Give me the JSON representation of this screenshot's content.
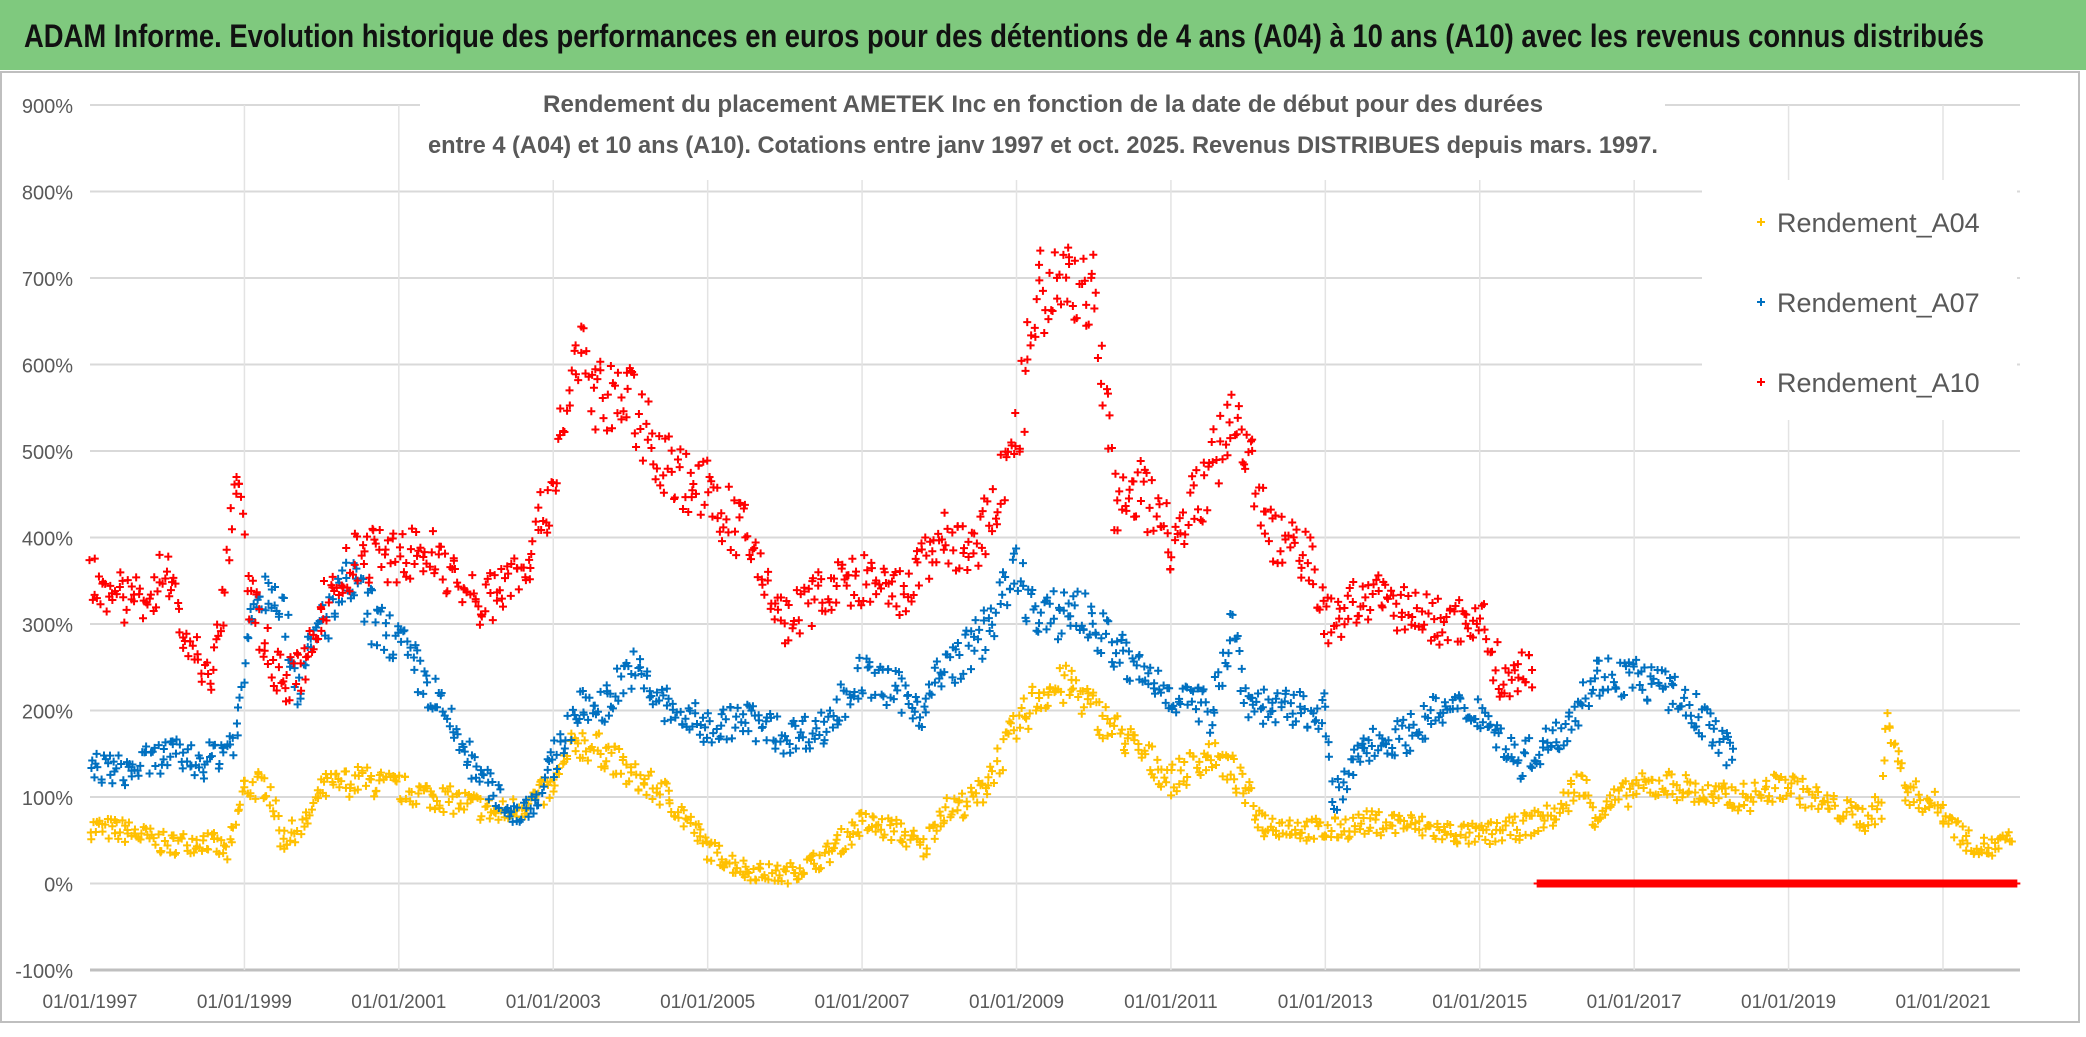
{
  "header": {
    "title": "ADAM Informe. Evolution historique des performances en euros pour des détentions de 4 ans (A04) à 10 ans (A10) avec les revenus connus distribués"
  },
  "colors": {
    "header_bg": "#7FC97E",
    "A04": "#FFC000",
    "A07": "#0070C0",
    "A10": "#FF0000",
    "text": "#595959",
    "grid": "#D9D9D9"
  },
  "chart_data": {
    "type": "scatter",
    "title_lines": [
      "Rendement du placement AMETEK Inc en fonction de la date de début pour des durées",
      "entre 4 (A04) et 10 ans (A10). Cotations entre janv 1997 et oct. 2025. Revenus DISTRIBUES depuis mars. 1997."
    ],
    "xlabel": "",
    "ylabel": "",
    "xlim": [
      1997.0,
      2022.0
    ],
    "ylim": [
      -100,
      900
    ],
    "y_ticks": [
      "-100%",
      "0%",
      "100%",
      "200%",
      "300%",
      "400%",
      "500%",
      "600%",
      "700%",
      "800%",
      "900%"
    ],
    "x_ticks": [
      "01/01/1997",
      "01/01/1999",
      "01/01/2001",
      "01/01/2003",
      "01/01/2005",
      "01/01/2007",
      "01/01/2009",
      "01/01/2011",
      "01/01/2013",
      "01/01/2015",
      "01/01/2017",
      "01/01/2019",
      "01/01/2021"
    ],
    "grid": true,
    "legend_position": "right",
    "marker": "plus",
    "series": [
      {
        "name": "Rendement_A04",
        "color_key": "A04",
        "points": [
          [
            1997.0,
            65
          ],
          [
            1997.5,
            60
          ],
          [
            1998.0,
            45
          ],
          [
            1998.5,
            50
          ],
          [
            1998.8,
            35
          ],
          [
            1999.0,
            110
          ],
          [
            1999.3,
            115
          ],
          [
            1999.5,
            50
          ],
          [
            1999.8,
            70
          ],
          [
            2000.0,
            110
          ],
          [
            2000.5,
            120
          ],
          [
            2001.0,
            110
          ],
          [
            2001.5,
            100
          ],
          [
            2002.0,
            90
          ],
          [
            2002.3,
            80
          ],
          [
            2002.6,
            90
          ],
          [
            2003.0,
            110
          ],
          [
            2003.3,
            165
          ],
          [
            2003.7,
            150
          ],
          [
            2004.0,
            125
          ],
          [
            2004.5,
            100
          ],
          [
            2005.0,
            40
          ],
          [
            2005.5,
            15
          ],
          [
            2006.0,
            10
          ],
          [
            2006.5,
            30
          ],
          [
            2007.0,
            70
          ],
          [
            2007.5,
            60
          ],
          [
            2007.8,
            40
          ],
          [
            2008.0,
            80
          ],
          [
            2008.5,
            100
          ],
          [
            2009.0,
            180
          ],
          [
            2009.3,
            220
          ],
          [
            2009.7,
            230
          ],
          [
            2010.0,
            200
          ],
          [
            2010.5,
            160
          ],
          [
            2011.0,
            120
          ],
          [
            2011.5,
            150
          ],
          [
            2011.8,
            130
          ],
          [
            2012.2,
            70
          ],
          [
            2013.0,
            60
          ],
          [
            2013.5,
            70
          ],
          [
            2014.0,
            70
          ],
          [
            2014.5,
            60
          ],
          [
            2015.0,
            55
          ],
          [
            2015.5,
            65
          ],
          [
            2016.0,
            80
          ],
          [
            2016.3,
            120
          ],
          [
            2016.5,
            80
          ],
          [
            2017.0,
            110
          ],
          [
            2017.5,
            115
          ],
          [
            2018.0,
            100
          ],
          [
            2018.5,
            100
          ],
          [
            2019.0,
            115
          ],
          [
            2019.5,
            90
          ],
          [
            2020.0,
            75
          ],
          [
            2020.2,
            90
          ],
          [
            2020.3,
            200
          ],
          [
            2020.5,
            110
          ],
          [
            2021.0,
            85
          ],
          [
            2021.3,
            50
          ],
          [
            2021.6,
            40
          ],
          [
            2021.9,
            50
          ]
        ]
      },
      {
        "name": "Rendement_A07",
        "color_key": "A07",
        "points": [
          [
            1997.0,
            135
          ],
          [
            1997.5,
            130
          ],
          [
            1998.0,
            150
          ],
          [
            1998.5,
            140
          ],
          [
            1998.9,
            170
          ],
          [
            1999.1,
            330
          ],
          [
            1999.4,
            350
          ],
          [
            1999.7,
            230
          ],
          [
            2000.0,
            300
          ],
          [
            2000.4,
            350
          ],
          [
            2000.7,
            300
          ],
          [
            2001.0,
            280
          ],
          [
            2001.5,
            210
          ],
          [
            2002.0,
            130
          ],
          [
            2002.5,
            80
          ],
          [
            2002.8,
            100
          ],
          [
            2003.0,
            140
          ],
          [
            2003.3,
            200
          ],
          [
            2003.7,
            210
          ],
          [
            2004.0,
            250
          ],
          [
            2004.5,
            200
          ],
          [
            2005.0,
            180
          ],
          [
            2005.5,
            190
          ],
          [
            2006.0,
            170
          ],
          [
            2006.5,
            180
          ],
          [
            2007.0,
            240
          ],
          [
            2007.5,
            220
          ],
          [
            2007.8,
            200
          ],
          [
            2008.0,
            240
          ],
          [
            2008.5,
            280
          ],
          [
            2009.0,
            360
          ],
          [
            2009.3,
            300
          ],
          [
            2009.7,
            320
          ],
          [
            2010.0,
            300
          ],
          [
            2010.5,
            250
          ],
          [
            2011.0,
            220
          ],
          [
            2011.5,
            200
          ],
          [
            2011.8,
            300
          ],
          [
            2012.0,
            210
          ],
          [
            2012.5,
            200
          ],
          [
            2013.0,
            200
          ],
          [
            2013.1,
            90
          ],
          [
            2013.5,
            160
          ],
          [
            2014.0,
            170
          ],
          [
            2014.5,
            200
          ],
          [
            2015.0,
            200
          ],
          [
            2015.5,
            140
          ],
          [
            2016.0,
            170
          ],
          [
            2016.5,
            240
          ],
          [
            2017.0,
            240
          ],
          [
            2017.5,
            220
          ],
          [
            2018.0,
            180
          ],
          [
            2018.3,
            140
          ]
        ]
      },
      {
        "name": "Rendement_A10",
        "color_key": "A10",
        "points": [
          [
            1997.0,
            360
          ],
          [
            1997.5,
            320
          ],
          [
            1998.0,
            360
          ],
          [
            1998.3,
            270
          ],
          [
            1998.6,
            240
          ],
          [
            1998.9,
            470
          ],
          [
            1999.1,
            320
          ],
          [
            1999.5,
            230
          ],
          [
            1999.8,
            250
          ],
          [
            2000.0,
            320
          ],
          [
            2000.5,
            380
          ],
          [
            2001.0,
            380
          ],
          [
            2001.5,
            380
          ],
          [
            2002.0,
            320
          ],
          [
            2002.3,
            340
          ],
          [
            2002.7,
            380
          ],
          [
            2003.0,
            460
          ],
          [
            2003.3,
            620
          ],
          [
            2003.6,
            560
          ],
          [
            2004.0,
            560
          ],
          [
            2004.5,
            480
          ],
          [
            2005.0,
            450
          ],
          [
            2005.5,
            400
          ],
          [
            2006.0,
            300
          ],
          [
            2006.5,
            340
          ],
          [
            2007.0,
            350
          ],
          [
            2007.5,
            330
          ],
          [
            2008.0,
            400
          ],
          [
            2008.5,
            380
          ],
          [
            2009.0,
            520
          ],
          [
            2009.3,
            680
          ],
          [
            2009.7,
            700
          ],
          [
            2010.0,
            680
          ],
          [
            2010.3,
            430
          ],
          [
            2010.6,
            460
          ],
          [
            2011.0,
            400
          ],
          [
            2011.5,
            470
          ],
          [
            2011.8,
            550
          ],
          [
            2012.0,
            500
          ],
          [
            2012.3,
            400
          ],
          [
            2012.8,
            380
          ],
          [
            2013.0,
            300
          ],
          [
            2013.5,
            330
          ],
          [
            2014.0,
            320
          ],
          [
            2014.5,
            300
          ],
          [
            2015.0,
            310
          ],
          [
            2015.3,
            230
          ],
          [
            2015.7,
            250
          ]
        ],
        "zero_segment": [
          2015.75,
          2021.95
        ]
      }
    ]
  }
}
